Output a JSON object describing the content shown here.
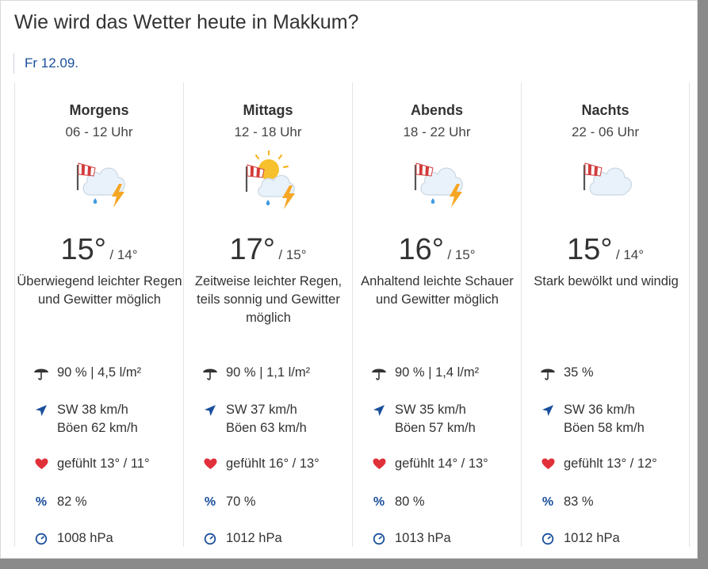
{
  "page": {
    "title": "Wie wird das Wetter heute in Makkum?",
    "date": "Fr 12.09."
  },
  "colors": {
    "accent": "#1a4f9c",
    "heart": "#e0303a",
    "sun": "#f6b623",
    "bolt": "#f5a623",
    "drop": "#3f9ae0"
  },
  "periods": [
    {
      "name": "Morgens",
      "time": "06 - 12 Uhr",
      "icon": "wind-cloud-rain-thunder-icon",
      "temp_high": "15°",
      "temp_low": "/ 14°",
      "desc": "Überwiegend leichter Regen und Gewitter möglich",
      "rain": "90 % | 4,5 l/m²",
      "wind": "SW 38 km/h",
      "gusts": "Böen 62 km/h",
      "feels": "gefühlt 13° / 11°",
      "humidity": "82 %",
      "pressure": "1008 hPa"
    },
    {
      "name": "Mittags",
      "time": "12 - 18 Uhr",
      "icon": "wind-sun-cloud-rain-thunder-icon",
      "temp_high": "17°",
      "temp_low": "/ 15°",
      "desc": "Zeitweise leichter Regen, teils sonnig und Gewitter möglich",
      "rain": "90 % | 1,1 l/m²",
      "wind": "SW 37 km/h",
      "gusts": "Böen 63 km/h",
      "feels": "gefühlt 16° / 13°",
      "humidity": "70 %",
      "pressure": "1012 hPa"
    },
    {
      "name": "Abends",
      "time": "18 - 22 Uhr",
      "icon": "wind-cloud-rain-thunder-icon",
      "temp_high": "16°",
      "temp_low": "/ 15°",
      "desc": "Anhaltend leichte Schauer und Gewitter möglich",
      "rain": "90 % | 1,4 l/m²",
      "wind": "SW 35 km/h",
      "gusts": "Böen 57 km/h",
      "feels": "gefühlt 14° / 13°",
      "humidity": "80 %",
      "pressure": "1013 hPa"
    },
    {
      "name": "Nachts",
      "time": "22 - 06 Uhr",
      "icon": "wind-cloud-icon",
      "temp_high": "15°",
      "temp_low": "/ 14°",
      "desc": "Stark bewölkt und windig",
      "rain": "35 %",
      "wind": "SW 36 km/h",
      "gusts": "Böen 58 km/h",
      "feels": "gefühlt 13° / 12°",
      "humidity": "83 %",
      "pressure": "1012 hPa"
    }
  ]
}
